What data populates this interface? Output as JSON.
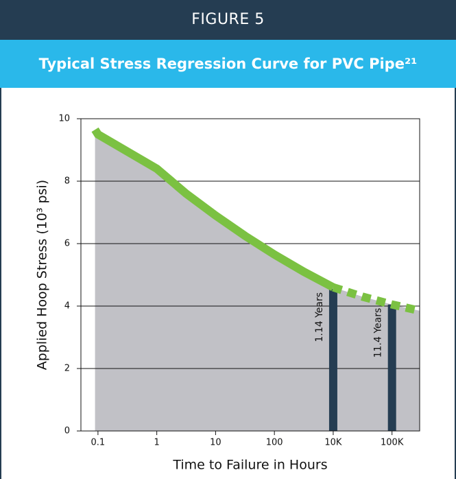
{
  "header": {
    "figure": "FIGURE 5",
    "title": "Typical Stress Regression Curve for PVC Pipe²¹"
  },
  "chart_data": {
    "type": "line",
    "ylabel": "Applied Hoop Stress (10³ psi)",
    "xlabel": "Time to Failure in Hours",
    "xlim": [
      -0.29,
      5.47
    ],
    "xticks": [
      {
        "value": 0,
        "label": "0.1"
      },
      {
        "value": 1,
        "label": "1"
      },
      {
        "value": 2,
        "label": "10"
      },
      {
        "value": 3,
        "label": "100"
      },
      {
        "value": 4,
        "label": "10K"
      },
      {
        "value": 5,
        "label": "100K"
      }
    ],
    "ylim": [
      0,
      10
    ],
    "yticks": [
      0,
      2,
      4,
      6,
      8,
      10
    ],
    "grid": true,
    "area_color": "#c1c1c6",
    "series": [
      {
        "color": "#7bc142",
        "style": "solid",
        "x": [
          -0.05,
          0,
          0.5,
          1,
          1.5,
          2,
          2.5,
          3,
          3.5,
          4
        ],
        "values": [
          9.65,
          9.5,
          8.95,
          8.4,
          7.6,
          6.9,
          6.25,
          5.65,
          5.1,
          4.6
        ]
      },
      {
        "color": "#7bc142",
        "style": "dashed",
        "x": [
          4,
          4.5,
          5,
          5.47
        ],
        "values": [
          4.6,
          4.3,
          4.05,
          3.85
        ]
      }
    ],
    "markers": [
      {
        "x": 4,
        "value": 4.55,
        "label": "1.14 Years",
        "color": "#253d52"
      },
      {
        "x": 5,
        "value": 4.05,
        "label": "11.4 Years",
        "color": "#253d52"
      }
    ]
  }
}
